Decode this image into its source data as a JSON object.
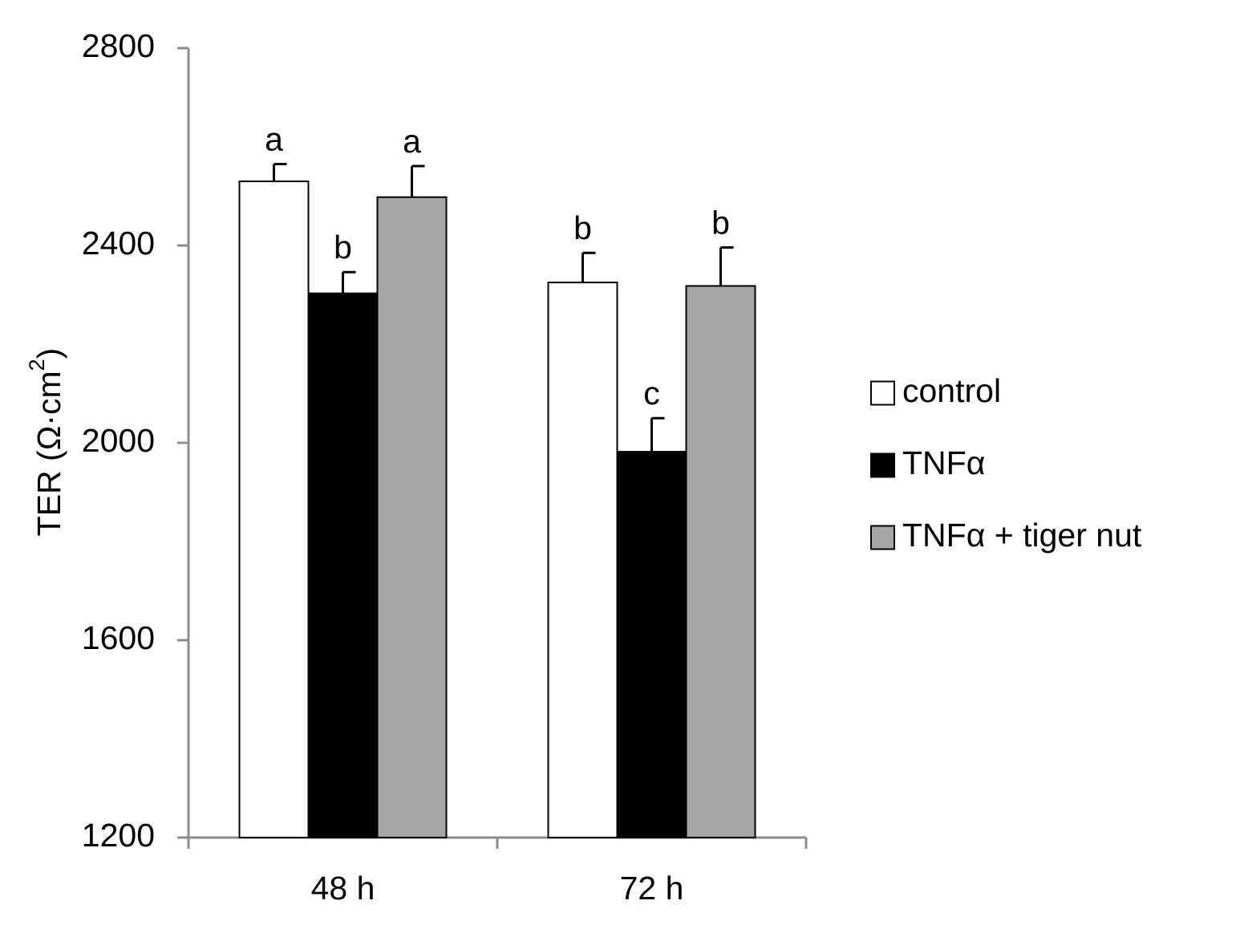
{
  "chart_data": {
    "type": "bar",
    "ylabel": "TER (Ω·cm",
    "ylabel_sup": "2",
    "ylabel_close": ")",
    "xlabel": "",
    "ylim": [
      1200,
      2800
    ],
    "yticks": [
      1200,
      1600,
      2000,
      2400,
      2800
    ],
    "categories": [
      "48 h",
      "72 h"
    ],
    "series": [
      {
        "name": "control",
        "color": "#ffffff",
        "values": [
          2530,
          2325
        ],
        "errors": [
          35,
          60
        ],
        "labels": [
          "a",
          "b"
        ]
      },
      {
        "name": "TNFα",
        "color": "#000000",
        "values": [
          2303,
          1982
        ],
        "errors": [
          43,
          68
        ],
        "labels": [
          "b",
          "c"
        ]
      },
      {
        "name": "TNFα + tiger nut",
        "color": "#a6a6a6",
        "values": [
          2498,
          2318
        ],
        "errors": [
          63,
          78
        ],
        "labels": [
          "a",
          "b"
        ]
      }
    ],
    "grid": false,
    "legend_position": "right"
  }
}
